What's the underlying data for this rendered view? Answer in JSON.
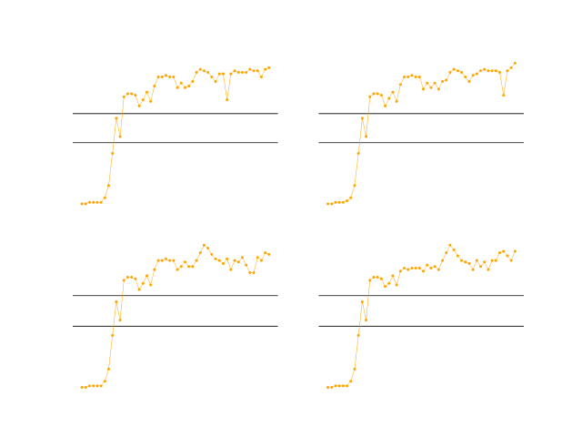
{
  "chart_data": [
    {
      "type": "line",
      "color": "#ffa500",
      "hlines": [
        0.6,
        0.41
      ],
      "xlim": [
        -2.4,
        51.3
      ],
      "ylim": [
        0,
        1
      ],
      "x": [
        0,
        1,
        2,
        3,
        4,
        5,
        6,
        7,
        8,
        9,
        10,
        11,
        12,
        13,
        14,
        15,
        16,
        17,
        18,
        19,
        20,
        21,
        22,
        23,
        24,
        25,
        26,
        27,
        28,
        29,
        30,
        31,
        32,
        33,
        34,
        35,
        36,
        37,
        38,
        39,
        40,
        41,
        42,
        43,
        44,
        45,
        46,
        47,
        48,
        49
      ],
      "values": [
        0.01,
        0.01,
        0.02,
        0.02,
        0.02,
        0.02,
        0.05,
        0.13,
        0.34,
        0.57,
        0.45,
        0.71,
        0.73,
        0.73,
        0.72,
        0.65,
        0.69,
        0.74,
        0.68,
        0.78,
        0.84,
        0.84,
        0.85,
        0.84,
        0.84,
        0.77,
        0.8,
        0.77,
        0.78,
        0.81,
        0.87,
        0.89,
        0.88,
        0.87,
        0.84,
        0.81,
        0.86,
        0.86,
        0.69,
        0.86,
        0.88,
        0.87,
        0.87,
        0.87,
        0.89,
        0.88,
        0.88,
        0.84,
        0.89,
        0.9
      ]
    },
    {
      "type": "line",
      "color": "#ffa500",
      "hlines": [
        0.6,
        0.41
      ],
      "xlim": [
        -2.4,
        51.3
      ],
      "ylim": [
        0,
        1
      ],
      "x": [
        0,
        1,
        2,
        3,
        4,
        5,
        6,
        7,
        8,
        9,
        10,
        11,
        12,
        13,
        14,
        15,
        16,
        17,
        18,
        19,
        20,
        21,
        22,
        23,
        24,
        25,
        26,
        27,
        28,
        29,
        30,
        31,
        32,
        33,
        34,
        35,
        36,
        37,
        38,
        39,
        40,
        41,
        42,
        43,
        44,
        45,
        46,
        47,
        48,
        49
      ],
      "values": [
        0.01,
        0.01,
        0.02,
        0.02,
        0.02,
        0.03,
        0.05,
        0.13,
        0.34,
        0.57,
        0.45,
        0.71,
        0.73,
        0.73,
        0.72,
        0.65,
        0.7,
        0.74,
        0.68,
        0.79,
        0.84,
        0.84,
        0.85,
        0.84,
        0.84,
        0.76,
        0.8,
        0.77,
        0.8,
        0.76,
        0.81,
        0.82,
        0.87,
        0.89,
        0.88,
        0.87,
        0.84,
        0.81,
        0.85,
        0.86,
        0.88,
        0.89,
        0.88,
        0.88,
        0.88,
        0.87,
        0.72,
        0.88,
        0.9,
        0.93
      ]
    },
    {
      "type": "line",
      "color": "#ffa500",
      "hlines": [
        0.61,
        0.41
      ],
      "xlim": [
        -2.4,
        51.3
      ],
      "ylim": [
        0,
        1
      ],
      "x": [
        0,
        1,
        2,
        3,
        4,
        5,
        6,
        7,
        8,
        9,
        10,
        11,
        12,
        13,
        14,
        15,
        16,
        17,
        18,
        19,
        20,
        21,
        22,
        23,
        24,
        25,
        26,
        27,
        28,
        29,
        30,
        31,
        32,
        33,
        34,
        35,
        36,
        37,
        38,
        39,
        40,
        41,
        42,
        43,
        44,
        45,
        46,
        47,
        48,
        49
      ],
      "values": [
        0.01,
        0.01,
        0.02,
        0.02,
        0.02,
        0.02,
        0.05,
        0.13,
        0.35,
        0.57,
        0.45,
        0.71,
        0.73,
        0.73,
        0.72,
        0.65,
        0.69,
        0.74,
        0.68,
        0.78,
        0.84,
        0.84,
        0.85,
        0.84,
        0.84,
        0.78,
        0.8,
        0.83,
        0.8,
        0.8,
        0.84,
        0.89,
        0.94,
        0.92,
        0.88,
        0.85,
        0.84,
        0.82,
        0.85,
        0.78,
        0.84,
        0.83,
        0.86,
        0.81,
        0.76,
        0.76,
        0.86,
        0.84,
        0.89,
        0.88
      ]
    },
    {
      "type": "line",
      "color": "#ffa500",
      "hlines": [
        0.61,
        0.41
      ],
      "xlim": [
        -2.4,
        51.3
      ],
      "ylim": [
        0,
        1
      ],
      "x": [
        0,
        1,
        2,
        3,
        4,
        5,
        6,
        7,
        8,
        9,
        10,
        11,
        12,
        13,
        14,
        15,
        16,
        17,
        18,
        19,
        20,
        21,
        22,
        23,
        24,
        25,
        26,
        27,
        28,
        29,
        30,
        31,
        32,
        33,
        34,
        35,
        36,
        37,
        38,
        39,
        40,
        41,
        42,
        43,
        44,
        45,
        46,
        47,
        48,
        49
      ],
      "values": [
        0.01,
        0.01,
        0.02,
        0.02,
        0.02,
        0.02,
        0.05,
        0.13,
        0.35,
        0.57,
        0.45,
        0.71,
        0.73,
        0.73,
        0.72,
        0.67,
        0.69,
        0.74,
        0.68,
        0.77,
        0.79,
        0.78,
        0.79,
        0.79,
        0.79,
        0.77,
        0.81,
        0.79,
        0.8,
        0.78,
        0.84,
        0.89,
        0.94,
        0.91,
        0.87,
        0.84,
        0.83,
        0.82,
        0.78,
        0.84,
        0.8,
        0.83,
        0.78,
        0.84,
        0.84,
        0.89,
        0.9,
        0.87,
        0.84,
        0.9
      ]
    }
  ]
}
